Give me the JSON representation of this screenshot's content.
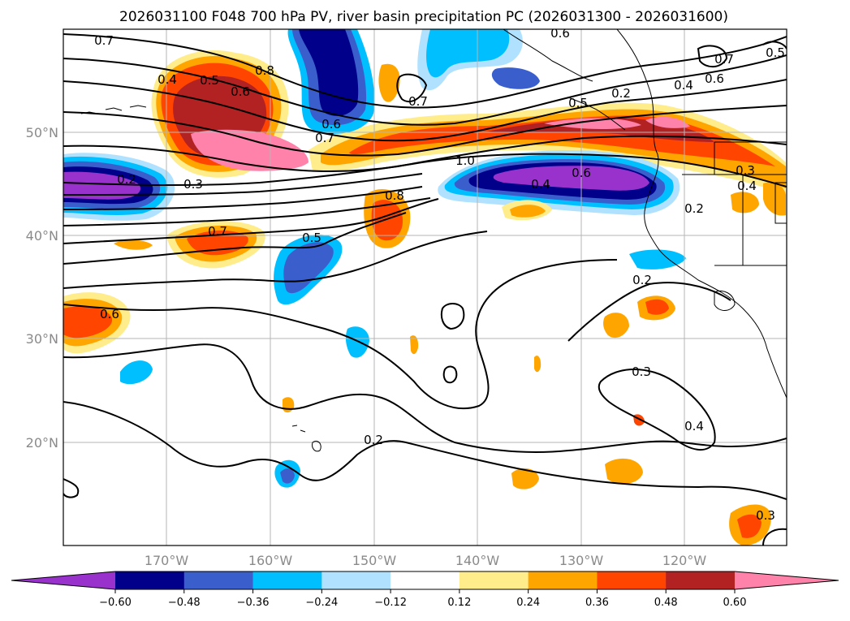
{
  "title": "2026031100 F048 700 hPa PV, river basin precipitation PC (2026031300 - 2026031600)",
  "lat_labels": [
    "50°N",
    "40°N",
    "30°N",
    "20°N"
  ],
  "lon_labels": [
    "170°W",
    "160°W",
    "150°W",
    "140°W",
    "130°W",
    "120°W"
  ],
  "colorbar": {
    "colors": [
      "#9932cc",
      "#00008b",
      "#3a5fcd",
      "#00bfff",
      "#b0e2ff",
      "#ffffff",
      "#ffec8b",
      "#ffa500",
      "#ff4500",
      "#b22222",
      "#ff82ab"
    ],
    "tick_labels": [
      "−0.60",
      "−0.48",
      "−0.36",
      "−0.24",
      "−0.12",
      "0.12",
      "0.24",
      "0.36",
      "0.48",
      "0.60"
    ]
  },
  "contour_labels": [
    "0.7",
    "0.6",
    "0.7",
    "0.5",
    "0.4",
    "0.5",
    "0.6",
    "0.8",
    "0.7",
    "0.6",
    "0.2",
    "0.4",
    "0.6",
    "0.5",
    "0.7",
    "0.2",
    "0.3",
    "0.4",
    "0.8",
    "1.0",
    "0.6",
    "0.4",
    "0.3",
    "0.2",
    "0.7",
    "0.5",
    "0.6",
    "0.2",
    "0.3",
    "0.4",
    "0.2",
    "0.3"
  ]
}
